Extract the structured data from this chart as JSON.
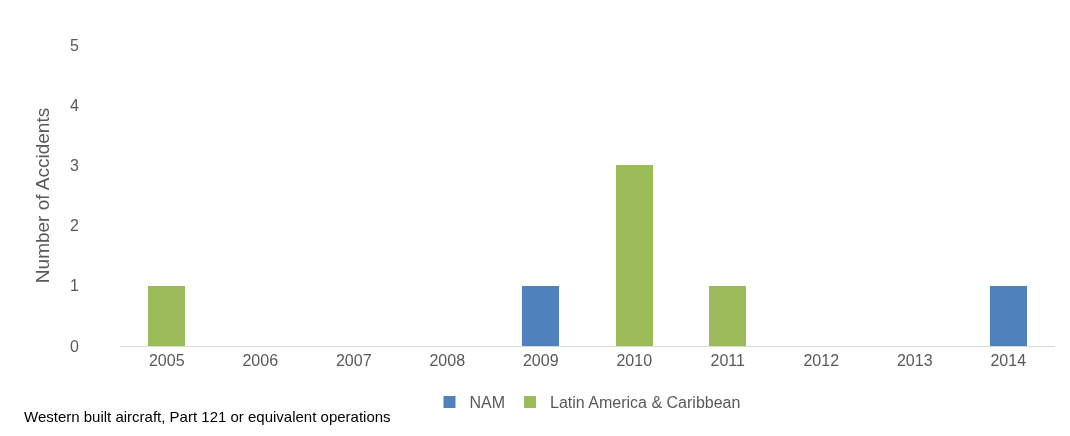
{
  "chart_data": {
    "type": "bar",
    "stacked": true,
    "ylabel": "Number of Accidents",
    "categories": [
      "2005",
      "2006",
      "2007",
      "2008",
      "2009",
      "2010",
      "2011",
      "2012",
      "2013",
      "2014"
    ],
    "series": [
      {
        "name": "Latin America & Caribbean",
        "color": "#9bbb59",
        "values": [
          1,
          0,
          0,
          0,
          0,
          3,
          1,
          0,
          0,
          0
        ]
      },
      {
        "name": "NAM",
        "color": "#4f81bd",
        "values": [
          0,
          0,
          0,
          0,
          1,
          0,
          0,
          0,
          0,
          1
        ]
      }
    ],
    "ylim": [
      0,
      5
    ],
    "yticks": [
      0,
      1,
      2,
      3,
      4,
      5
    ],
    "grid": false,
    "legend": "bottom",
    "annotations": [
      "Western built aircraft, Part 121 or equivalent operations"
    ]
  }
}
